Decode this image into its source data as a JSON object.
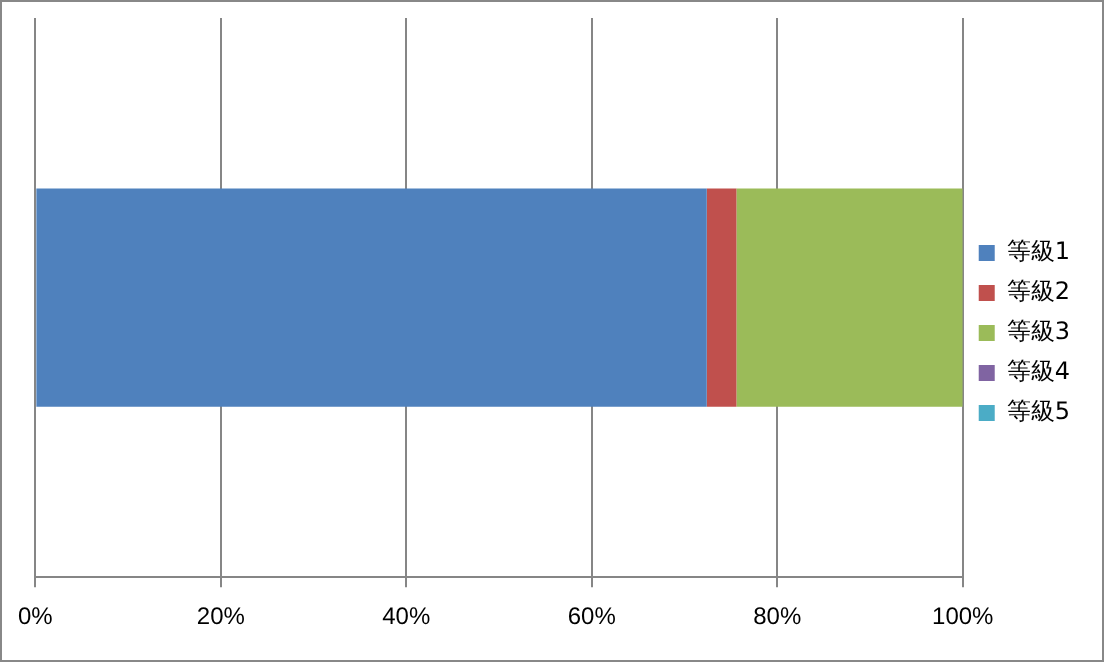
{
  "chart_data": {
    "type": "bar",
    "orientation": "horizontal",
    "stacked": true,
    "categories": [
      null
    ],
    "series": [
      {
        "name": "等級1",
        "color": "#4f81bd",
        "values": [
          72.4
        ]
      },
      {
        "name": "等級2",
        "color": "#c0504d",
        "values": [
          3.2
        ]
      },
      {
        "name": "等級3",
        "color": "#9bbb59",
        "values": [
          24.4
        ]
      },
      {
        "name": "等級4",
        "color": "#8064a2",
        "values": [
          0
        ]
      },
      {
        "name": "等級5",
        "color": "#4bacc6",
        "values": [
          0
        ]
      }
    ],
    "xlim": [
      0,
      100
    ],
    "xticks": [
      {
        "value": 0,
        "label": "0%"
      },
      {
        "value": 20,
        "label": "20%"
      },
      {
        "value": 40,
        "label": "40%"
      },
      {
        "value": 60,
        "label": "60%"
      },
      {
        "value": 80,
        "label": "80%"
      },
      {
        "value": 100,
        "label": "100%"
      }
    ],
    "grid": "x",
    "legend": "right"
  }
}
